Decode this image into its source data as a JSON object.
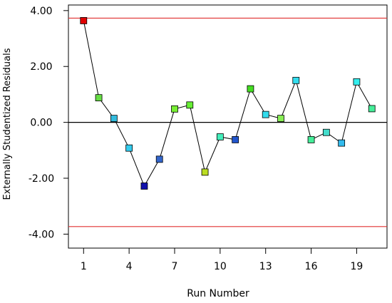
{
  "chart_data": {
    "type": "line",
    "title": "",
    "xlabel": "Run Number",
    "ylabel": "Externally Studentized Residuals",
    "xlim": [
      0,
      21
    ],
    "ylim": [
      -4.5,
      4.2
    ],
    "x_ticks": [
      1,
      4,
      7,
      10,
      13,
      16,
      19
    ],
    "x_tick_labels": [
      "1",
      "4",
      "7",
      "10",
      "13",
      "16",
      "19"
    ],
    "y_ticks": [
      4,
      2,
      0,
      -2,
      -4
    ],
    "y_tick_labels": [
      "4.00",
      "2.00",
      "0.00",
      "-2.00",
      "-4.00"
    ],
    "reference_lines": [
      {
        "y": 3.73,
        "color": "#e03030"
      },
      {
        "y": 0,
        "color": "#000000"
      },
      {
        "y": -3.73,
        "color": "#e03030"
      }
    ],
    "series": [
      {
        "x": [
          1,
          2,
          3,
          4,
          5,
          6,
          7,
          8,
          9,
          10,
          11,
          12,
          13,
          14,
          15,
          16,
          17,
          18,
          19,
          20
        ],
        "values": [
          3.64,
          0.88,
          0.14,
          -0.92,
          -2.28,
          -1.32,
          0.48,
          0.62,
          -1.78,
          -0.52,
          -0.62,
          1.2,
          0.28,
          0.14,
          1.5,
          -0.62,
          -0.36,
          -0.74,
          1.45,
          0.49
        ],
        "colors": [
          "#e00000",
          "#66dd44",
          "#33bbdd",
          "#33ccee",
          "#1111aa",
          "#3366cc",
          "#77ee33",
          "#66ee33",
          "#bbdd22",
          "#44eebb",
          "#2255cc",
          "#44dd22",
          "#33ddee",
          "#88ee55",
          "#33ddee",
          "#44ee99",
          "#44ddcc",
          "#33bbee",
          "#33eeee",
          "#44ee99"
        ]
      }
    ],
    "grid": false,
    "legend": "none"
  }
}
